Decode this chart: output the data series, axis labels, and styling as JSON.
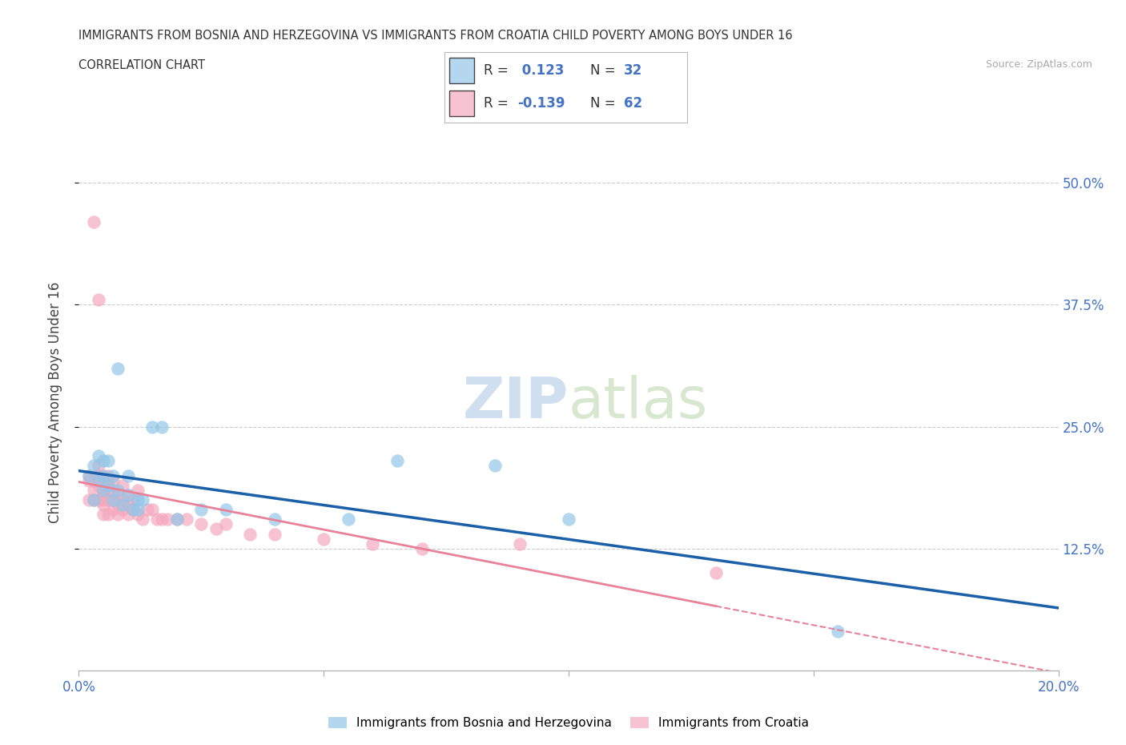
{
  "title_line1": "IMMIGRANTS FROM BOSNIA AND HERZEGOVINA VS IMMIGRANTS FROM CROATIA CHILD POVERTY AMONG BOYS UNDER 16",
  "title_line2": "CORRELATION CHART",
  "source": "Source: ZipAtlas.com",
  "ylabel": "Child Poverty Among Boys Under 16",
  "xlim": [
    0.0,
    0.2
  ],
  "ylim": [
    0.0,
    0.55
  ],
  "yticks": [
    0.125,
    0.25,
    0.375,
    0.5
  ],
  "ytick_labels": [
    "12.5%",
    "25.0%",
    "37.5%",
    "50.0%"
  ],
  "xticks": [
    0.0,
    0.05,
    0.1,
    0.15,
    0.2
  ],
  "xtick_labels": [
    "0.0%",
    "",
    "",
    "",
    "20.0%"
  ],
  "r_bosnia": 0.123,
  "n_bosnia": 32,
  "r_croatia": -0.139,
  "n_croatia": 62,
  "color_bosnia": "#93c6e8",
  "color_croatia": "#f4a8be",
  "line_color_bosnia": "#1a5fa8",
  "line_color_croatia": "#e8829a",
  "background_color": "#ffffff",
  "watermark_zip": "ZIP",
  "watermark_atlas": "atlas",
  "bosnia_x": [
    0.002,
    0.003,
    0.003,
    0.004,
    0.004,
    0.005,
    0.005,
    0.005,
    0.006,
    0.006,
    0.007,
    0.007,
    0.008,
    0.008,
    0.009,
    0.01,
    0.01,
    0.011,
    0.012,
    0.012,
    0.013,
    0.015,
    0.017,
    0.02,
    0.025,
    0.03,
    0.04,
    0.055,
    0.065,
    0.085,
    0.1,
    0.155
  ],
  "bosnia_y": [
    0.2,
    0.21,
    0.175,
    0.22,
    0.195,
    0.185,
    0.215,
    0.2,
    0.19,
    0.215,
    0.2,
    0.175,
    0.185,
    0.31,
    0.17,
    0.18,
    0.2,
    0.165,
    0.175,
    0.165,
    0.175,
    0.25,
    0.25,
    0.155,
    0.165,
    0.165,
    0.155,
    0.155,
    0.215,
    0.21,
    0.155,
    0.04
  ],
  "croatia_x": [
    0.002,
    0.002,
    0.002,
    0.003,
    0.003,
    0.003,
    0.003,
    0.004,
    0.004,
    0.004,
    0.004,
    0.004,
    0.004,
    0.004,
    0.005,
    0.005,
    0.005,
    0.005,
    0.005,
    0.005,
    0.005,
    0.006,
    0.006,
    0.006,
    0.006,
    0.006,
    0.007,
    0.007,
    0.007,
    0.007,
    0.008,
    0.008,
    0.008,
    0.008,
    0.009,
    0.009,
    0.009,
    0.01,
    0.01,
    0.01,
    0.011,
    0.011,
    0.012,
    0.012,
    0.013,
    0.014,
    0.015,
    0.016,
    0.017,
    0.018,
    0.02,
    0.022,
    0.025,
    0.028,
    0.03,
    0.035,
    0.04,
    0.05,
    0.06,
    0.07,
    0.09,
    0.13
  ],
  "croatia_y": [
    0.2,
    0.175,
    0.195,
    0.175,
    0.185,
    0.195,
    0.46,
    0.195,
    0.2,
    0.175,
    0.19,
    0.2,
    0.21,
    0.38,
    0.175,
    0.185,
    0.195,
    0.17,
    0.2,
    0.18,
    0.16,
    0.175,
    0.185,
    0.16,
    0.19,
    0.2,
    0.175,
    0.185,
    0.165,
    0.195,
    0.17,
    0.18,
    0.16,
    0.175,
    0.165,
    0.175,
    0.19,
    0.17,
    0.18,
    0.16,
    0.165,
    0.175,
    0.16,
    0.185,
    0.155,
    0.165,
    0.165,
    0.155,
    0.155,
    0.155,
    0.155,
    0.155,
    0.15,
    0.145,
    0.15,
    0.14,
    0.14,
    0.135,
    0.13,
    0.125,
    0.13,
    0.1
  ],
  "line_solid_end_croatia": 0.13,
  "line_dashed_end_croatia": 0.2
}
